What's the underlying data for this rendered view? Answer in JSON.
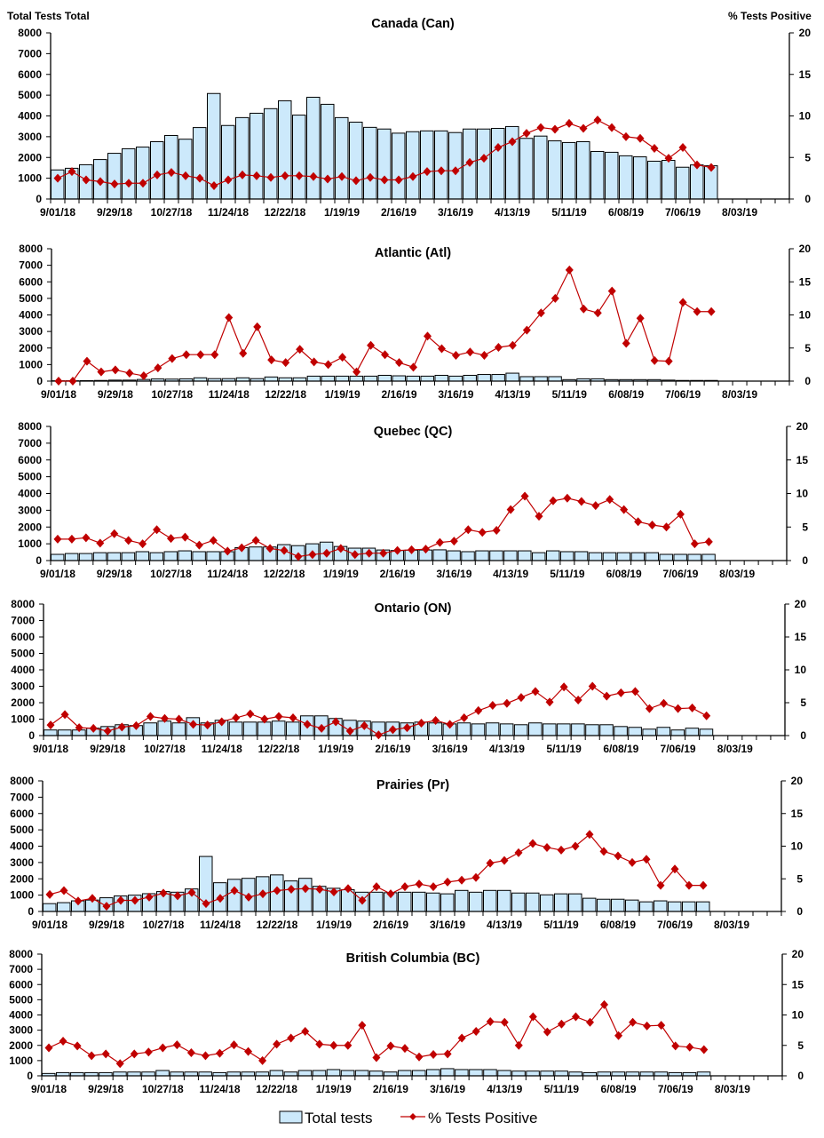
{
  "header": {
    "left_axis_title": "Total Tests Total",
    "right_axis_title": "% Tests Positive"
  },
  "legend": {
    "bars_label": "Total tests",
    "line_label": "% Tests Positive"
  },
  "colors": {
    "bars": "#cce9fb",
    "bar_outline": "#000000",
    "line": "#c00000"
  },
  "chart_data": [
    {
      "type": "bar+line",
      "title": "Canada (Can)",
      "x_tick_labels": [
        "9/01/18",
        "9/29/18",
        "10/27/18",
        "11/24/18",
        "12/22/18",
        "1/19/19",
        "2/16/19",
        "3/16/19",
        "4/13/19",
        "5/11/19",
        "6/08/19",
        "7/06/19",
        "8/03/19"
      ],
      "y_ticks": [
        "0",
        "1000",
        "2000",
        "3000",
        "4000",
        "5000",
        "6000",
        "7000",
        "8000"
      ],
      "ylim": [
        0,
        8000
      ],
      "y2_ticks": [
        "0",
        "5",
        "10",
        "15",
        "20"
      ],
      "y2lim": [
        0,
        20
      ],
      "series": [
        {
          "name": "Total tests",
          "type": "bar",
          "values": [
            1400,
            1480,
            1650,
            1900,
            2200,
            2420,
            2500,
            2760,
            3060,
            2880,
            3440,
            5080,
            3540,
            3920,
            4130,
            4350,
            4730,
            4040,
            4900,
            4560,
            3920,
            3700,
            3450,
            3370,
            3170,
            3240,
            3280,
            3280,
            3200,
            3370,
            3370,
            3400,
            3490,
            2920,
            3030,
            2800,
            2720,
            2760,
            2290,
            2250,
            2080,
            2030,
            1820,
            1860,
            1530,
            1640,
            1600
          ]
        },
        {
          "name": "% Tests Positive",
          "type": "line",
          "values": [
            2.5,
            3.3,
            2.3,
            2.1,
            1.8,
            1.9,
            1.9,
            2.9,
            3.2,
            2.8,
            2.5,
            1.6,
            2.3,
            2.9,
            2.8,
            2.6,
            2.8,
            2.8,
            2.7,
            2.4,
            2.7,
            2.2,
            2.6,
            2.3,
            2.3,
            2.7,
            3.3,
            3.4,
            3.4,
            4.4,
            4.9,
            6.2,
            6.9,
            7.9,
            8.6,
            8.4,
            9.1,
            8.5,
            9.5,
            8.6,
            7.5,
            7.3,
            6.1,
            4.9,
            6.2,
            4.1,
            3.8
          ]
        }
      ]
    },
    {
      "type": "bar+line",
      "title": "Atlantic (Atl)",
      "x_tick_labels": [
        "9/01/18",
        "9/29/18",
        "10/27/18",
        "11/24/18",
        "12/22/18",
        "1/19/19",
        "2/16/19",
        "3/16/19",
        "4/13/19",
        "5/11/19",
        "6/08/19",
        "7/06/19",
        "8/03/19"
      ],
      "y_ticks": [
        "0",
        "1000",
        "2000",
        "3000",
        "4000",
        "5000",
        "6000",
        "7000",
        "8000"
      ],
      "ylim": [
        0,
        8000
      ],
      "y2_ticks": [
        "0",
        "5",
        "10",
        "15",
        "20"
      ],
      "y2lim": [
        0,
        20
      ],
      "series": [
        {
          "name": "Total tests",
          "type": "bar",
          "values": [
            20,
            20,
            30,
            40,
            60,
            60,
            100,
            130,
            120,
            140,
            200,
            150,
            150,
            200,
            150,
            250,
            200,
            200,
            300,
            300,
            300,
            300,
            300,
            350,
            320,
            300,
            300,
            350,
            300,
            350,
            400,
            400,
            480,
            270,
            270,
            270,
            90,
            140,
            140,
            90,
            90,
            90,
            90,
            60,
            40,
            40,
            40
          ]
        },
        {
          "name": "% Tests Positive",
          "type": "line",
          "values": [
            0,
            0,
            3.0,
            1.4,
            1.7,
            1.2,
            0.8,
            2.0,
            3.4,
            4.0,
            4.0,
            4.0,
            9.6,
            4.2,
            8.2,
            3.2,
            2.8,
            4.8,
            2.9,
            2.5,
            3.6,
            1.4,
            5.4,
            4.0,
            2.8,
            2.1,
            6.8,
            4.9,
            3.9,
            4.4,
            3.9,
            5.1,
            5.4,
            7.7,
            10.3,
            12.5,
            16.8,
            10.9,
            10.3,
            13.6,
            5.7,
            9.5,
            3.1,
            3.0,
            11.9,
            10.5,
            10.5
          ]
        }
      ]
    },
    {
      "type": "bar+line",
      "title": "Quebec (QC)",
      "x_tick_labels": [
        "9/01/18",
        "9/29/18",
        "10/27/18",
        "11/24/18",
        "12/22/18",
        "1/19/19",
        "2/16/19",
        "3/16/19",
        "4/13/19",
        "5/11/19",
        "6/08/19",
        "7/06/19",
        "8/03/19"
      ],
      "y_ticks": [
        "0",
        "1000",
        "2000",
        "3000",
        "4000",
        "5000",
        "6000",
        "7000",
        "8000"
      ],
      "ylim": [
        0,
        8000
      ],
      "y2_ticks": [
        "0",
        "5",
        "10",
        "15",
        "20"
      ],
      "y2lim": [
        0,
        20
      ],
      "series": [
        {
          "name": "Total tests",
          "type": "bar",
          "values": [
            370,
            420,
            420,
            470,
            470,
            470,
            530,
            470,
            530,
            580,
            530,
            530,
            530,
            770,
            810,
            810,
            950,
            890,
            1000,
            1100,
            840,
            740,
            740,
            630,
            600,
            620,
            630,
            640,
            580,
            530,
            580,
            580,
            580,
            580,
            470,
            580,
            530,
            530,
            470,
            470,
            470,
            470,
            470,
            370,
            370,
            370,
            370
          ]
        },
        {
          "name": "% Tests Positive",
          "type": "line",
          "values": [
            3.2,
            3.2,
            3.4,
            2.6,
            4.0,
            3.0,
            2.5,
            4.6,
            3.3,
            3.5,
            2.3,
            3.0,
            1.4,
            1.9,
            3.0,
            1.8,
            1.5,
            0.6,
            0.9,
            1.1,
            1.8,
            0.9,
            1.1,
            1.1,
            1.5,
            1.6,
            1.7,
            2.7,
            2.9,
            4.6,
            4.2,
            4.5,
            7.6,
            9.6,
            6.6,
            8.9,
            9.3,
            8.8,
            8.2,
            9.1,
            7.6,
            5.8,
            5.3,
            5.0,
            6.9,
            2.5,
            2.8
          ]
        }
      ]
    },
    {
      "type": "bar+line",
      "title": "Ontario (ON)",
      "x_tick_labels": [
        "9/01/18",
        "9/29/18",
        "10/27/18",
        "11/24/18",
        "12/22/18",
        "1/19/19",
        "2/16/19",
        "3/16/19",
        "4/13/19",
        "5/11/19",
        "6/08/19",
        "7/06/19",
        "8/03/19"
      ],
      "y_ticks": [
        "0",
        "1000",
        "2000",
        "3000",
        "4000",
        "5000",
        "6000",
        "7000",
        "8000"
      ],
      "ylim": [
        0,
        8000
      ],
      "y2_ticks": [
        "0",
        "5",
        "10",
        "15",
        "20"
      ],
      "y2lim": [
        0,
        20
      ],
      "series": [
        {
          "name": "Total tests",
          "type": "bar",
          "values": [
            340,
            340,
            340,
            450,
            550,
            660,
            610,
            770,
            880,
            770,
            1090,
            770,
            930,
            820,
            820,
            820,
            880,
            820,
            1200,
            1200,
            1040,
            930,
            880,
            820,
            820,
            770,
            820,
            770,
            710,
            770,
            710,
            770,
            710,
            660,
            770,
            710,
            710,
            710,
            660,
            660,
            550,
            500,
            390,
            500,
            340,
            450,
            390
          ]
        },
        {
          "name": "% Tests Positive",
          "type": "line",
          "values": [
            1.6,
            3.2,
            1.2,
            1.1,
            0.7,
            1.3,
            1.5,
            2.9,
            2.6,
            2.5,
            1.7,
            1.6,
            2.1,
            2.7,
            3.3,
            2.5,
            2.9,
            2.7,
            1.7,
            1.1,
            2.1,
            0.7,
            1.5,
            0.1,
            0.9,
            1.2,
            1.9,
            2.3,
            1.7,
            2.7,
            3.8,
            4.6,
            4.9,
            5.8,
            6.7,
            5.1,
            7.4,
            5.4,
            7.5,
            6.0,
            6.5,
            6.7,
            4.1,
            4.9,
            4.1,
            4.2,
            3.0
          ]
        }
      ]
    },
    {
      "type": "bar+line",
      "title": "Prairies (Pr)",
      "x_tick_labels": [
        "9/01/18",
        "9/29/18",
        "10/27/18",
        "11/24/18",
        "12/22/18",
        "1/19/19",
        "2/16/19",
        "3/16/19",
        "4/13/19",
        "5/11/19",
        "6/08/19",
        "7/06/19",
        "8/03/19"
      ],
      "y_ticks": [
        "0",
        "1000",
        "2000",
        "3000",
        "4000",
        "5000",
        "6000",
        "7000",
        "8000"
      ],
      "ylim": [
        0,
        8000
      ],
      "y2_ticks": [
        "0",
        "5",
        "10",
        "15",
        "20"
      ],
      "y2lim": [
        0,
        20
      ],
      "series": [
        {
          "name": "Total tests",
          "type": "bar",
          "values": [
            480,
            540,
            650,
            700,
            840,
            950,
            1000,
            1090,
            1220,
            1180,
            1380,
            3370,
            1760,
            1970,
            2030,
            2130,
            2240,
            1870,
            2030,
            1540,
            1420,
            1330,
            1180,
            1180,
            1150,
            1180,
            1180,
            1130,
            1080,
            1290,
            1180,
            1290,
            1290,
            1130,
            1130,
            1020,
            1080,
            1080,
            810,
            750,
            750,
            700,
            590,
            650,
            590,
            590,
            590
          ]
        },
        {
          "name": "% Tests Positive",
          "type": "line",
          "values": [
            2.6,
            3.2,
            1.6,
            2.0,
            0.8,
            1.7,
            1.7,
            2.2,
            2.8,
            2.4,
            2.9,
            1.2,
            2.0,
            3.2,
            2.2,
            2.7,
            3.2,
            3.4,
            3.5,
            3.4,
            3.0,
            3.5,
            1.7,
            3.8,
            2.7,
            3.8,
            4.2,
            3.8,
            4.5,
            4.8,
            5.2,
            7.4,
            7.8,
            9.0,
            10.4,
            9.8,
            9.4,
            10.0,
            11.8,
            9.2,
            8.5,
            7.5,
            8.0,
            4.0,
            6.5,
            4.0,
            4.0
          ]
        }
      ]
    },
    {
      "type": "bar+line",
      "title": "British Columbia (BC)",
      "x_tick_labels": [
        "9/01/18",
        "9/29/18",
        "10/27/18",
        "11/24/18",
        "12/22/18",
        "1/19/19",
        "2/16/19",
        "3/16/19",
        "4/13/19",
        "5/11/19",
        "6/08/19",
        "7/06/19",
        "8/03/19"
      ],
      "y_ticks": [
        "0",
        "1000",
        "2000",
        "3000",
        "4000",
        "5000",
        "6000",
        "7000",
        "8000"
      ],
      "ylim": [
        0,
        8000
      ],
      "y2_ticks": [
        "0",
        "5",
        "10",
        "15",
        "20"
      ],
      "y2lim": [
        0,
        20
      ],
      "series": [
        {
          "name": "Total tests",
          "type": "bar",
          "values": [
            155,
            210,
            210,
            210,
            210,
            250,
            250,
            250,
            350,
            250,
            250,
            250,
            210,
            250,
            250,
            250,
            350,
            250,
            350,
            350,
            410,
            350,
            350,
            310,
            250,
            350,
            350,
            410,
            470,
            410,
            410,
            410,
            350,
            310,
            310,
            310,
            310,
            250,
            210,
            250,
            250,
            250,
            250,
            250,
            210,
            210,
            250
          ]
        },
        {
          "name": "% Tests Positive",
          "type": "line",
          "values": [
            4.6,
            5.7,
            4.9,
            3.3,
            3.6,
            2.0,
            3.6,
            3.9,
            4.6,
            5.1,
            3.8,
            3.3,
            3.7,
            5.1,
            4.0,
            2.5,
            5.2,
            6.2,
            7.3,
            5.2,
            5.0,
            5.0,
            8.3,
            3.0,
            4.9,
            4.5,
            3.1,
            3.5,
            3.6,
            6.2,
            7.3,
            8.9,
            8.8,
            5.0,
            9.7,
            7.2,
            8.5,
            9.7,
            8.8,
            11.7,
            6.6,
            8.8,
            8.2,
            8.3,
            4.9,
            4.7,
            4.3
          ]
        }
      ]
    }
  ]
}
